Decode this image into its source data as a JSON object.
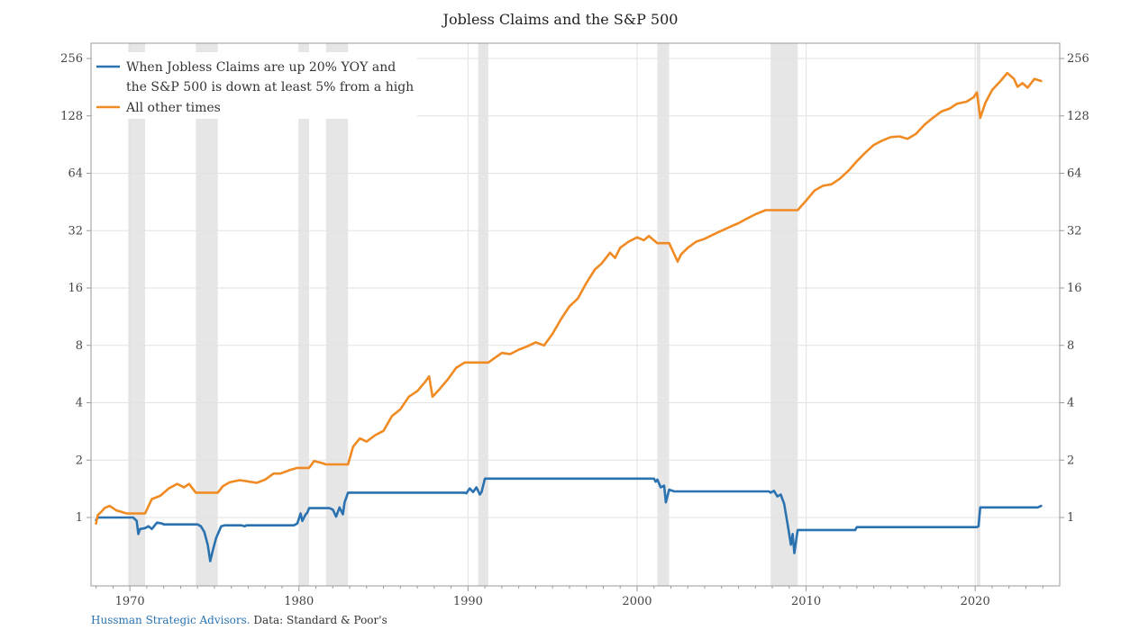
{
  "chart_data": {
    "type": "line",
    "title": "Jobless Claims and the S&P 500",
    "y_scale": "log2",
    "ylim": [
      0.45,
      300
    ],
    "xlim": [
      1967.7,
      2025.0
    ],
    "y_ticks": [
      1,
      2,
      4,
      8,
      16,
      32,
      64,
      128,
      256
    ],
    "x_ticks": [
      1970,
      1980,
      1990,
      2000,
      2010,
      2020
    ],
    "grid": true,
    "legend_position": "top-left",
    "legend": [
      {
        "lines": [
          "When Jobless Claims are up 20% YOY and",
          "the S&P 500 is down at least 5% from a high"
        ],
        "color": "#2a72b0"
      },
      {
        "lines": [
          "All other times"
        ],
        "color": "#f08a22"
      }
    ],
    "recessions": [
      [
        1969.9,
        1970.9
      ],
      [
        1973.9,
        1975.2
      ],
      [
        1980.0,
        1980.6
      ],
      [
        1981.6,
        1982.9
      ],
      [
        1990.6,
        1991.2
      ],
      [
        2001.2,
        2001.9
      ],
      [
        2007.9,
        2009.5
      ],
      [
        2020.1,
        2020.3
      ]
    ],
    "series": [
      {
        "name": "When Jobless Claims are up 20% YOY and the S&P 500 is down at least 5% from a high",
        "color": "#2a72b0",
        "x": [
          1968.0,
          1968.1,
          1968.2,
          1968.4,
          1970.2,
          1970.4,
          1970.5,
          1970.6,
          1970.9,
          1971.1,
          1971.3,
          1971.6,
          1971.9,
          1972.0,
          1974.0,
          1974.2,
          1974.4,
          1974.6,
          1974.75,
          1974.9,
          1975.1,
          1975.4,
          1975.6,
          1976.6,
          1976.8,
          1976.9,
          1979.7,
          1979.9,
          1980.1,
          1980.2,
          1980.4,
          1980.5,
          1980.6,
          1981.8,
          1982.0,
          1982.2,
          1982.4,
          1982.6,
          1982.7,
          1982.9,
          1983.0,
          1989.8,
          1989.9,
          1990.1,
          1990.3,
          1990.5,
          1990.7,
          1990.8,
          1991.0,
          1991.3,
          2001.0,
          2001.1,
          2001.2,
          2001.4,
          2001.6,
          2001.7,
          2001.9,
          2002.2,
          2002.5,
          2002.6,
          2002.7,
          2007.8,
          2007.9,
          2008.1,
          2008.3,
          2008.5,
          2008.7,
          2008.9,
          2009.1,
          2009.2,
          2009.3,
          2009.5,
          2012.9,
          2013.0,
          2020.1,
          2020.2,
          2020.3,
          2020.4,
          2023.6,
          2023.7,
          2023.9
        ],
        "values": [
          0.97,
          1.0,
          1.0,
          1.0,
          1.0,
          0.96,
          0.82,
          0.87,
          0.88,
          0.9,
          0.87,
          0.94,
          0.93,
          0.92,
          0.92,
          0.9,
          0.84,
          0.72,
          0.59,
          0.67,
          0.78,
          0.9,
          0.91,
          0.91,
          0.9,
          0.91,
          0.91,
          0.93,
          1.05,
          0.96,
          1.04,
          1.06,
          1.12,
          1.12,
          1.1,
          1.01,
          1.13,
          1.04,
          1.2,
          1.35,
          1.35,
          1.35,
          1.34,
          1.42,
          1.36,
          1.44,
          1.32,
          1.36,
          1.6,
          1.6,
          1.6,
          1.54,
          1.58,
          1.44,
          1.47,
          1.2,
          1.4,
          1.37,
          1.37,
          1.37,
          1.37,
          1.37,
          1.35,
          1.38,
          1.29,
          1.32,
          1.18,
          0.93,
          0.72,
          0.82,
          0.65,
          0.86,
          0.86,
          0.89,
          0.89,
          0.9,
          1.13,
          1.13,
          1.13,
          1.13,
          1.15
        ]
      },
      {
        "name": "All other times",
        "color": "#f08a22",
        "x": [
          1968.0,
          1968.1,
          1968.3,
          1968.5,
          1968.8,
          1969.0,
          1969.2,
          1969.5,
          1969.8,
          1970.9,
          1971.3,
          1971.8,
          1972.3,
          1972.8,
          1973.2,
          1973.5,
          1973.9,
          1975.2,
          1975.5,
          1975.9,
          1976.5,
          1976.9,
          1977.5,
          1978.0,
          1978.5,
          1978.9,
          1979.5,
          1979.9,
          1980.6,
          1980.9,
          1981.3,
          1981.6,
          1982.9,
          1983.2,
          1983.6,
          1984.0,
          1984.5,
          1985.0,
          1985.5,
          1986.0,
          1986.5,
          1987.0,
          1987.5,
          1987.7,
          1987.9,
          1988.3,
          1988.8,
          1989.3,
          1989.8,
          1990.6,
          1991.2,
          1991.6,
          1992.0,
          1992.5,
          1993.0,
          1993.5,
          1994.0,
          1994.5,
          1995.0,
          1995.5,
          1996.0,
          1996.5,
          1997.0,
          1997.5,
          1997.9,
          1998.4,
          1998.7,
          1999.0,
          1999.5,
          2000.0,
          2000.4,
          2000.7,
          2001.2,
          2001.9,
          2002.4,
          2002.6,
          2003.0,
          2003.5,
          2004.0,
          2004.5,
          2005.0,
          2005.5,
          2006.0,
          2006.5,
          2007.0,
          2007.6,
          2007.9,
          2009.5,
          2010.0,
          2010.5,
          2011.0,
          2011.5,
          2012.0,
          2012.5,
          2013.0,
          2013.5,
          2014.0,
          2014.5,
          2015.0,
          2015.5,
          2016.0,
          2016.5,
          2017.0,
          2017.5,
          2018.0,
          2018.5,
          2018.9,
          2019.5,
          2019.9,
          2020.1,
          2020.3,
          2020.6,
          2021.0,
          2021.5,
          2021.9,
          2022.3,
          2022.5,
          2022.8,
          2023.1,
          2023.5,
          2023.9
        ],
        "values": [
          0.93,
          1.03,
          1.07,
          1.12,
          1.15,
          1.12,
          1.09,
          1.07,
          1.05,
          1.05,
          1.25,
          1.3,
          1.42,
          1.5,
          1.44,
          1.5,
          1.35,
          1.35,
          1.46,
          1.53,
          1.57,
          1.55,
          1.52,
          1.58,
          1.7,
          1.7,
          1.78,
          1.82,
          1.82,
          1.98,
          1.94,
          1.9,
          1.9,
          2.35,
          2.6,
          2.5,
          2.7,
          2.85,
          3.4,
          3.7,
          4.3,
          4.6,
          5.2,
          5.5,
          4.3,
          4.7,
          5.3,
          6.1,
          6.5,
          6.5,
          6.5,
          6.9,
          7.3,
          7.2,
          7.6,
          7.9,
          8.3,
          8.0,
          9.2,
          11.0,
          12.8,
          14.1,
          17.0,
          20.0,
          21.5,
          24.5,
          23.0,
          26.0,
          28.0,
          29.5,
          28.5,
          30.0,
          27.5,
          27.5,
          22.0,
          24.0,
          26.0,
          28.0,
          29.0,
          30.5,
          32.0,
          33.5,
          35.0,
          37.0,
          39.0,
          41.0,
          41.0,
          41.0,
          46.0,
          52.0,
          55.0,
          56.0,
          60.0,
          66.0,
          74.0,
          82.0,
          90.0,
          95.0,
          99.0,
          100.0,
          97.0,
          103.0,
          115.0,
          125.0,
          135.0,
          140.0,
          148.0,
          152.0,
          160.0,
          170.0,
          125.0,
          150.0,
          175.0,
          195.0,
          215.0,
          200.0,
          182.0,
          190.0,
          180.0,
          200.0,
          195.0
        ]
      }
    ]
  },
  "credit": {
    "brand": "Hussman Strategic Advisors.",
    "source": "Data: Standard & Poor's"
  }
}
